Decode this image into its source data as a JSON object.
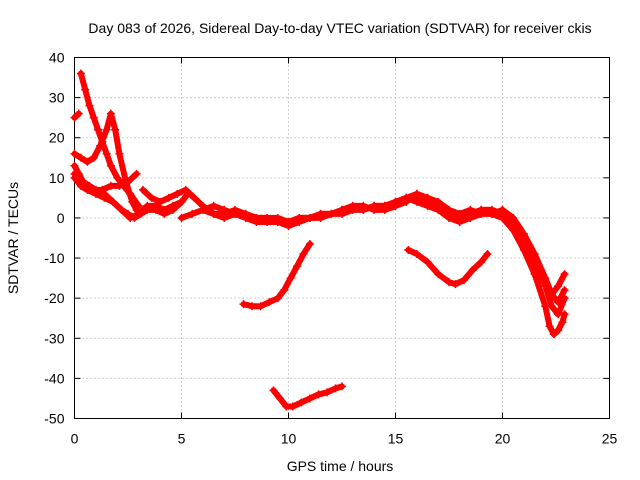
{
  "chart_data": {
    "type": "scatter",
    "title": "Day 083 of 2026, Sidereal Day-to-day VTEC variation (SDTVAR) for receiver ckis",
    "xlabel": "GPS time / hours",
    "ylabel": "SDTVAR / TECUs",
    "xlim": [
      0,
      25
    ],
    "ylim": [
      -50,
      40
    ],
    "xticks": [
      0,
      5,
      10,
      15,
      20,
      25
    ],
    "yticks": [
      -50,
      -40,
      -30,
      -20,
      -10,
      0,
      10,
      20,
      30,
      40
    ],
    "grid": true,
    "marker": "+",
    "color": "#ff0000",
    "series": [
      {
        "name": "s1",
        "x": [
          0.3,
          0.5,
          0.7,
          0.9,
          1.1,
          1.3,
          1.5,
          1.7,
          2.0,
          2.3,
          2.6,
          3.0
        ],
        "y": [
          36,
          32,
          28,
          25,
          22,
          19,
          16,
          13,
          10,
          8,
          6,
          3
        ]
      },
      {
        "name": "s2",
        "x": [
          0.0,
          0.1,
          0.2
        ],
        "y": [
          25,
          25.5,
          26
        ]
      },
      {
        "name": "s3",
        "x": [
          0.0,
          0.3,
          0.6,
          0.9,
          1.2,
          1.5,
          1.7,
          1.9,
          2.1,
          2.4,
          2.7,
          2.9
        ],
        "y": [
          16,
          15,
          14,
          15,
          18,
          22,
          26,
          22,
          16,
          9,
          4,
          2
        ]
      },
      {
        "name": "s4",
        "x": [
          0.0,
          0.2,
          0.4,
          0.7,
          1.0,
          1.4,
          1.8,
          2.2,
          2.5,
          2.8,
          3.1,
          3.4,
          3.8,
          4.2,
          4.6,
          5.0,
          5.3
        ],
        "y": [
          13,
          11,
          9,
          8,
          7,
          6,
          4,
          2,
          1,
          0,
          1,
          2,
          2,
          1,
          2,
          4,
          6
        ]
      },
      {
        "name": "s5",
        "x": [
          0.0,
          0.3,
          0.6,
          0.9,
          1.3,
          1.7,
          2.1,
          2.5,
          2.9
        ],
        "y": [
          11,
          9,
          8,
          7,
          7,
          8,
          8,
          9,
          11
        ]
      },
      {
        "name": "s6",
        "x": [
          0.0,
          0.3,
          0.6,
          1.0,
          1.4,
          1.8,
          2.2,
          2.6,
          3.0,
          3.4,
          3.8,
          4.2,
          4.6,
          5.0
        ],
        "y": [
          10,
          8,
          7,
          6,
          5,
          4,
          2,
          0,
          1,
          3,
          3,
          2,
          3,
          4
        ]
      },
      {
        "name": "s7",
        "x": [
          3.2,
          3.6,
          4.0,
          4.4,
          4.8,
          5.2,
          5.6,
          6.0,
          6.5,
          7.0,
          7.5,
          8.0,
          8.5,
          9.0,
          9.5,
          10.0,
          10.5,
          11.0,
          11.5,
          12.0,
          12.5
        ],
        "y": [
          7,
          5,
          4,
          5,
          6,
          7,
          5,
          3,
          1,
          1,
          2,
          1,
          0,
          0,
          -1,
          -1,
          0,
          0,
          1,
          1,
          2
        ]
      },
      {
        "name": "s8",
        "x": [
          5.0,
          5.5,
          6.0,
          6.5,
          7.0,
          7.5,
          8.0,
          8.5,
          9.0,
          9.5,
          10.0,
          10.5,
          11.0,
          11.5,
          12.0,
          12.5,
          13.0,
          13.5,
          14.0,
          14.5,
          15.0,
          15.5,
          16.0,
          16.5,
          17.0,
          17.5,
          18.0,
          18.5,
          19.0,
          19.5,
          20.0
        ],
        "y": [
          0,
          1,
          2,
          1,
          0,
          1,
          0,
          -1,
          -1,
          -1,
          -2,
          -1,
          0,
          0,
          1,
          1,
          2,
          2,
          3,
          3,
          4,
          5,
          5,
          4,
          3,
          1,
          0,
          1,
          2,
          2,
          1
        ]
      },
      {
        "name": "s9",
        "x": [
          6.0,
          6.5,
          7.0,
          7.5,
          8.0,
          8.5,
          9.0,
          9.5,
          10.0,
          10.5,
          11.0,
          11.5,
          12.0,
          12.5,
          13.0,
          13.5,
          14.0,
          14.5,
          15.0,
          15.5,
          16.0,
          16.5,
          17.0,
          17.5,
          18.0,
          18.5,
          19.0,
          19.5,
          20.0
        ],
        "y": [
          2,
          3,
          2,
          1,
          1,
          0,
          0,
          0,
          -1,
          0,
          0,
          1,
          1,
          2,
          3,
          3,
          2,
          2,
          3,
          4,
          6,
          5,
          4,
          2,
          1,
          2,
          1,
          1,
          2
        ]
      },
      {
        "name": "s10",
        "x": [
          12.5,
          13.0,
          13.5,
          14.0,
          14.5,
          15.0,
          15.5,
          16.0,
          16.5,
          17.0,
          17.5,
          18.0,
          18.5,
          19.0,
          19.5,
          20.0,
          20.5,
          21.0,
          21.5,
          22.0,
          22.3,
          22.6,
          22.9
        ],
        "y": [
          2,
          3,
          2,
          3,
          2,
          3,
          5,
          4,
          3,
          2,
          0,
          -1,
          0,
          1,
          2,
          1,
          -2,
          -6,
          -11,
          -17,
          -22,
          -24,
          -20
        ]
      },
      {
        "name": "s11",
        "x": [
          14.0,
          14.5,
          15.0,
          15.5,
          16.0,
          16.5,
          17.0,
          17.5,
          18.0,
          18.5,
          19.0,
          19.5,
          20.0,
          20.5,
          21.0,
          21.5,
          22.0,
          22.3,
          22.6,
          22.9
        ],
        "y": [
          3,
          3,
          4,
          5,
          6,
          5,
          3,
          1,
          0,
          1,
          2,
          2,
          1,
          -1,
          -5,
          -10,
          -16,
          -19,
          -17,
          -14
        ]
      },
      {
        "name": "s12",
        "x": [
          19.5,
          20.0,
          20.5,
          21.0,
          21.5,
          22.0,
          22.2,
          22.4,
          22.6,
          22.8,
          22.9
        ],
        "y": [
          1,
          0,
          -3,
          -8,
          -14,
          -22,
          -27,
          -29,
          -28,
          -26,
          -24
        ]
      },
      {
        "name": "s13",
        "x": [
          20.0,
          20.5,
          21.0,
          21.5,
          22.0,
          22.3,
          22.6,
          22.9
        ],
        "y": [
          2,
          0,
          -4,
          -9,
          -15,
          -19,
          -21,
          -18
        ]
      },
      {
        "name": "s14",
        "x": [
          7.9,
          8.3,
          8.7,
          9.1,
          9.5,
          9.8,
          10.1,
          10.4,
          10.7,
          11.0
        ],
        "y": [
          -21.5,
          -22,
          -22,
          -21,
          -20,
          -18,
          -15,
          -12,
          -9,
          -6.5
        ]
      },
      {
        "name": "s15",
        "x": [
          15.6,
          16.0,
          16.5,
          17.0,
          17.5,
          17.8,
          18.2,
          18.6,
          19.0,
          19.3
        ],
        "y": [
          -8,
          -9,
          -11,
          -14,
          -16,
          -16.5,
          -15.5,
          -13,
          -11,
          -9
        ]
      },
      {
        "name": "s16",
        "x": [
          9.3,
          9.6,
          9.9,
          10.2,
          10.6,
          11.0,
          11.4,
          11.8,
          12.2,
          12.5
        ],
        "y": [
          -43,
          -45,
          -47,
          -47,
          -46,
          -45,
          -44,
          -43.5,
          -42.5,
          -42
        ]
      }
    ]
  }
}
